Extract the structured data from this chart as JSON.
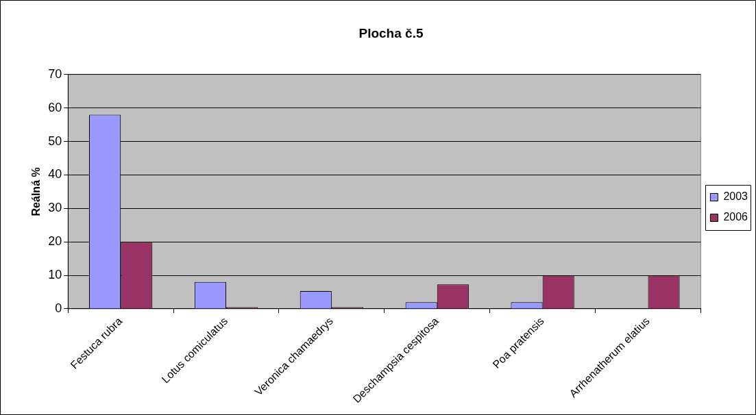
{
  "chart_data": {
    "type": "bar",
    "title": "Plocha č.5",
    "ylabel": "Reálná %",
    "categories": [
      "Festuca rubra",
      "Lotus comiculatus",
      "Veronica chamaedrys",
      "Deschampsia cespitosa",
      "Poa pratensis",
      "Arrhenatherum elatius"
    ],
    "series": [
      {
        "name": "2003",
        "color": "#9999ff",
        "values": [
          58,
          8,
          5.3,
          2,
          2,
          0
        ]
      },
      {
        "name": "2006",
        "color": "#993366",
        "values": [
          20,
          0.5,
          0.5,
          7.3,
          10,
          10
        ]
      }
    ],
    "ylim": [
      0,
      70
    ],
    "yticks": [
      0,
      10,
      20,
      30,
      40,
      50,
      60,
      70
    ],
    "grid": "y",
    "legend": "right"
  }
}
